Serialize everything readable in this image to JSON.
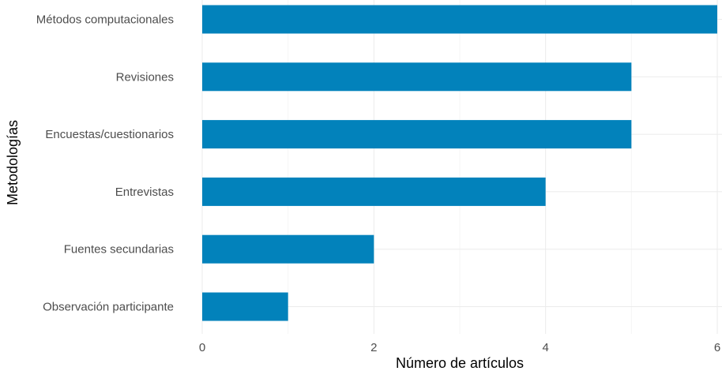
{
  "chart_data": {
    "type": "bar",
    "orientation": "horizontal",
    "categories": [
      "Métodos computacionales",
      "Revisiones",
      "Encuestas/cuestionarios",
      "Entrevistas",
      "Fuentes secundarias",
      "Observación participante"
    ],
    "values": [
      6,
      5,
      5,
      4,
      2,
      1
    ],
    "xlabel": "Número de artículos",
    "ylabel": "Metodologías",
    "xlim": [
      0,
      6
    ],
    "xticks": [
      "0",
      "2",
      "4",
      "6"
    ],
    "bar_color": "#0282bb",
    "grid": true,
    "legend": "none"
  }
}
